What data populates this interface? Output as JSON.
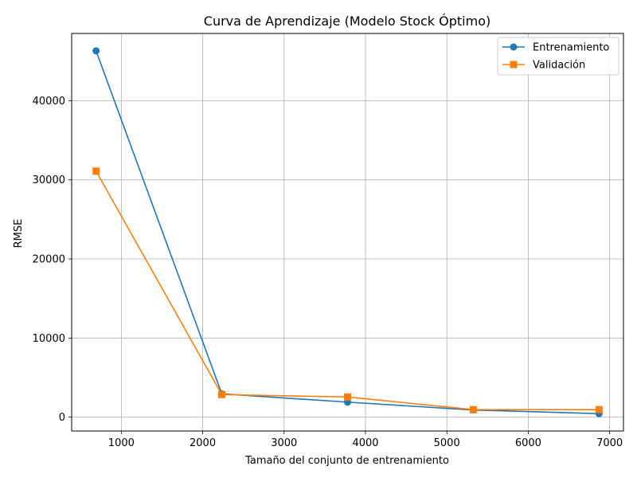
{
  "chart_data": {
    "type": "line",
    "title": "Curva de Aprendizaje (Modelo Stock Óptimo)",
    "xlabel": "Tamaño del conjunto de entrenamiento",
    "ylabel": "RMSE",
    "xlim": [
      390,
      7170
    ],
    "ylim": [
      -1750,
      48500
    ],
    "xticks": [
      1000,
      2000,
      3000,
      4000,
      5000,
      6000,
      7000
    ],
    "yticks": [
      0,
      10000,
      20000,
      30000,
      40000
    ],
    "grid": true,
    "legend_position": "top-right",
    "x": [
      690,
      2235,
      3780,
      5325,
      6870
    ],
    "series": [
      {
        "name": "Entrenamiento",
        "color": "#1f77b4",
        "marker": "circle",
        "values": [
          46300,
          2950,
          1900,
          900,
          450
        ]
      },
      {
        "name": "Validación",
        "color": "#ff7f0e",
        "marker": "square",
        "values": [
          31100,
          2850,
          2550,
          950,
          950
        ]
      }
    ]
  }
}
